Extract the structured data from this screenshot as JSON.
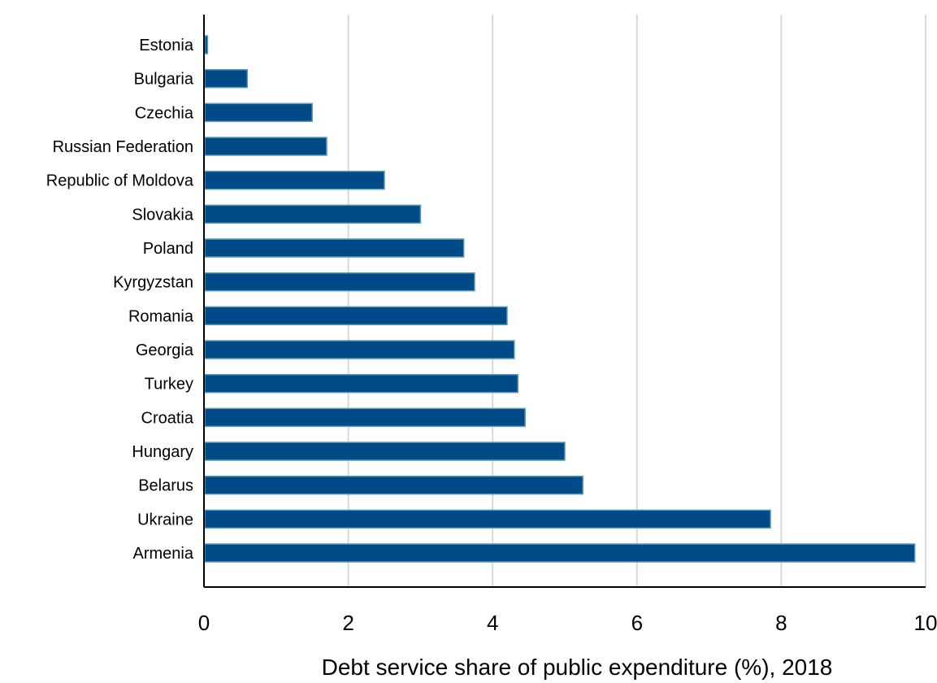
{
  "chart_data": {
    "type": "bar",
    "orientation": "horizontal",
    "categories": [
      "Estonia",
      "Bulgaria",
      "Czechia",
      "Russian Federation",
      "Republic of Moldova",
      "Slovakia",
      "Poland",
      "Kyrgyzstan",
      "Romania",
      "Georgia",
      "Turkey",
      "Croatia",
      "Hungary",
      "Belarus",
      "Ukraine",
      "Armenia"
    ],
    "values": [
      0.05,
      0.6,
      1.5,
      1.7,
      2.5,
      3.0,
      3.6,
      3.75,
      4.2,
      4.3,
      4.35,
      4.45,
      5.0,
      5.25,
      7.85,
      9.85
    ],
    "xlabel": "Debt service share of public expenditure (%), 2018",
    "xlim": [
      0,
      10
    ],
    "xticks": [
      "0",
      "2",
      "4",
      "6",
      "8",
      "10"
    ],
    "grid": "vertical",
    "bar_color": "#004b87",
    "bar_edge_color": "#5b9bb5"
  }
}
